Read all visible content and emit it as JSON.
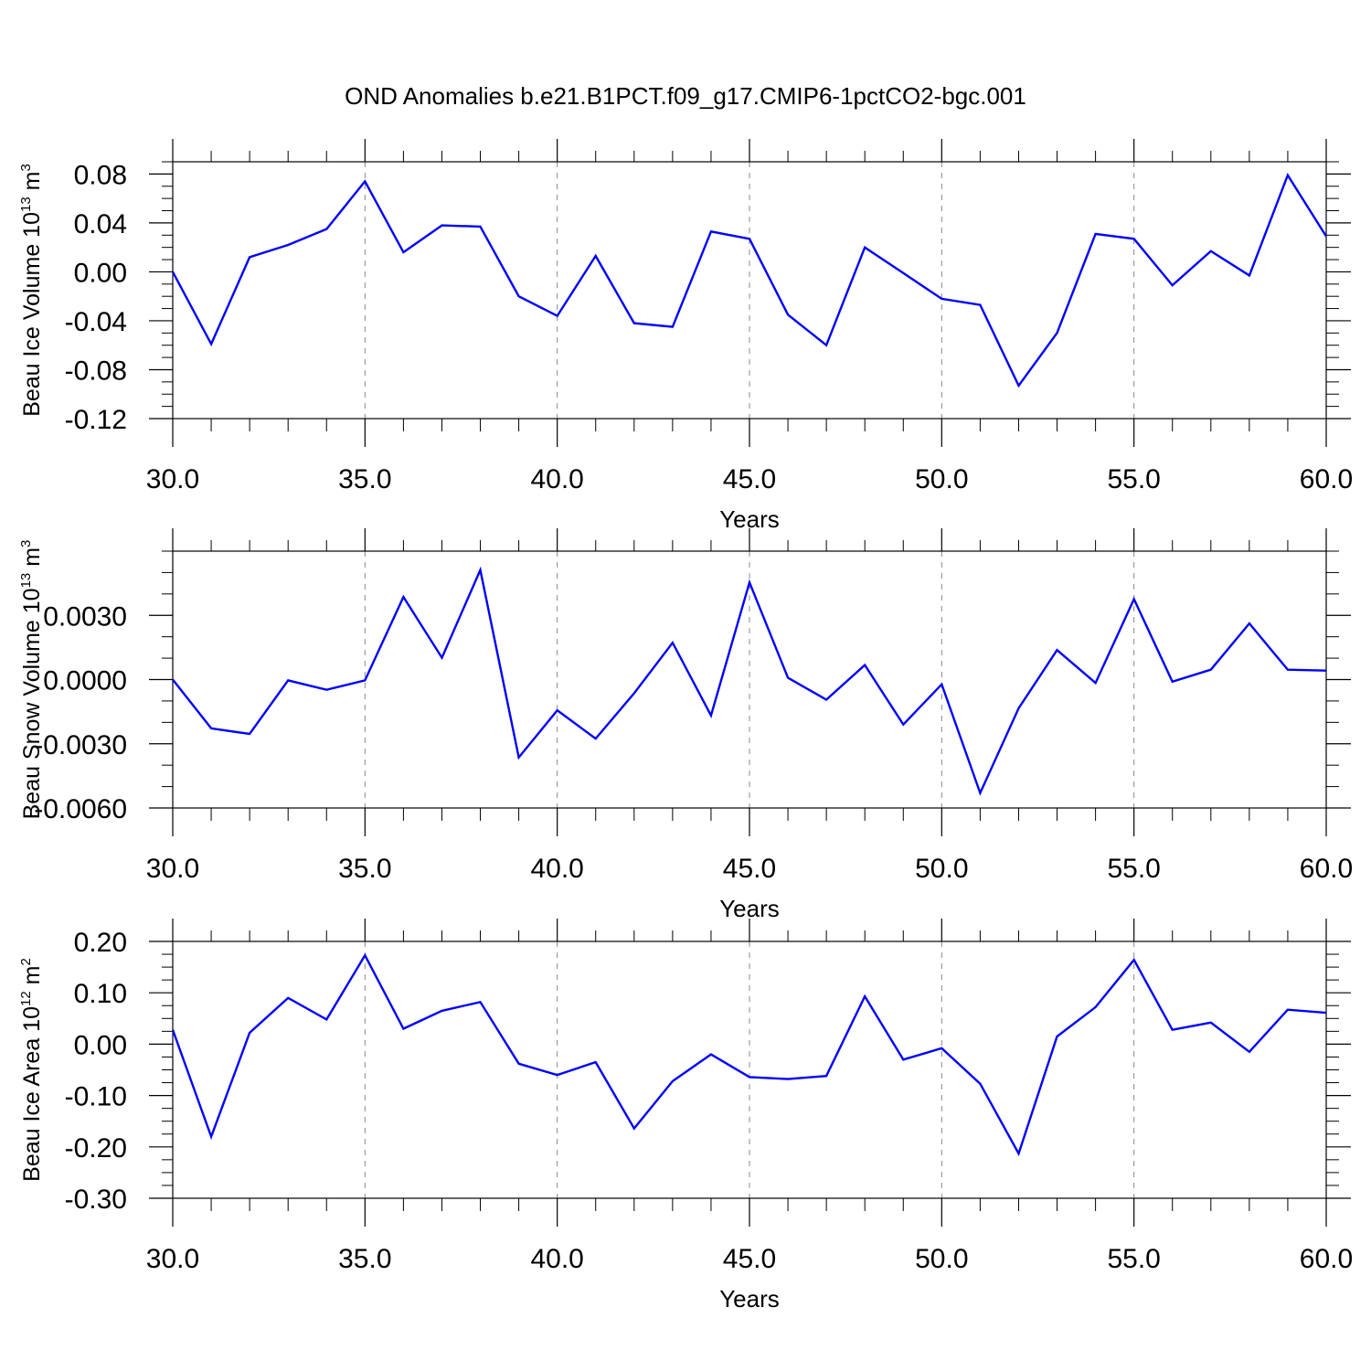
{
  "title": "OND Anomalies b.e21.B1PCT.f09_g17.CMIP6-1pctCO2-bgc.001",
  "colors": {
    "series": "#0000ff",
    "axis": "#000000",
    "grid": "#888888"
  },
  "chart_data": [
    {
      "type": "line",
      "xlabel": "Years",
      "ylabel_main": "Beau Ice Volume 10",
      "ylabel_exp": "13",
      "ylabel_unit": " m",
      "ylabel_unit_exp": "3",
      "xlim": [
        30,
        60
      ],
      "ylim": [
        -0.12,
        0.09
      ],
      "x_ticks": [
        30,
        35,
        40,
        45,
        50,
        55,
        60
      ],
      "x_tick_labels": [
        "30.0",
        "35.0",
        "40.0",
        "45.0",
        "50.0",
        "55.0",
        "60.0"
      ],
      "y_ticks": [
        -0.12,
        -0.08,
        -0.04,
        0.0,
        0.04,
        0.08
      ],
      "y_tick_labels": [
        "-0.12",
        "-0.08",
        "-0.04",
        "0.00",
        "0.04",
        "0.08"
      ],
      "y_minor_step": 0.01,
      "x_grid": "dashed-major",
      "x": [
        30,
        31,
        32,
        33,
        34,
        35,
        36,
        37,
        38,
        39,
        40,
        41,
        42,
        43,
        44,
        45,
        46,
        47,
        48,
        49,
        50,
        51,
        52,
        53,
        54,
        55,
        56,
        57,
        58,
        59,
        60
      ],
      "y": [
        0.0,
        -0.059,
        0.012,
        0.022,
        0.035,
        0.074,
        0.016,
        0.038,
        0.037,
        -0.02,
        -0.036,
        0.013,
        -0.042,
        -0.045,
        0.033,
        0.027,
        -0.035,
        -0.06,
        0.02,
        -0.001,
        -0.022,
        -0.027,
        -0.093,
        -0.05,
        0.031,
        0.027,
        -0.011,
        0.017,
        -0.003,
        0.079,
        0.029
      ]
    },
    {
      "type": "line",
      "xlabel": "Years",
      "ylabel_main": "Beau Snow Volume 10",
      "ylabel_exp": "13",
      "ylabel_unit": " m",
      "ylabel_unit_exp": "3",
      "xlim": [
        30,
        60
      ],
      "ylim": [
        -0.006,
        0.006
      ],
      "x_ticks": [
        30,
        35,
        40,
        45,
        50,
        55,
        60
      ],
      "x_tick_labels": [
        "30.0",
        "35.0",
        "40.0",
        "45.0",
        "50.0",
        "55.0",
        "60.0"
      ],
      "y_ticks": [
        -0.006,
        -0.003,
        0.0,
        0.003
      ],
      "y_tick_labels": [
        "-0.0060",
        "-0.0030",
        "0.0000",
        "0.0030"
      ],
      "y_minor_step": 0.001,
      "x_grid": "dashed-major",
      "x": [
        30,
        31,
        32,
        33,
        34,
        35,
        36,
        37,
        38,
        39,
        40,
        41,
        42,
        43,
        44,
        45,
        46,
        47,
        48,
        49,
        50,
        51,
        52,
        53,
        54,
        55,
        56,
        57,
        58,
        59,
        60
      ],
      "y": [
        0.0,
        -0.00228,
        -0.00254,
        -4e-05,
        -0.00048,
        -4e-05,
        0.00386,
        0.00102,
        0.00512,
        -0.00364,
        -0.00144,
        -0.00276,
        -0.00064,
        0.00172,
        -0.00168,
        0.00454,
        8e-05,
        -0.00094,
        0.00068,
        -0.0021,
        -0.00022,
        -0.0053,
        -0.00134,
        0.00138,
        -0.00016,
        0.00376,
        -0.0001,
        0.00046,
        0.00262,
        0.00046,
        0.00042
      ]
    },
    {
      "type": "line",
      "xlabel": "Years",
      "ylabel_main": "Beau Ice Area 10",
      "ylabel_exp": "12",
      "ylabel_unit": " m",
      "ylabel_unit_exp": "2",
      "xlim": [
        30,
        60
      ],
      "ylim": [
        -0.3,
        0.2
      ],
      "x_ticks": [
        30,
        35,
        40,
        45,
        50,
        55,
        60
      ],
      "x_tick_labels": [
        "30.0",
        "35.0",
        "40.0",
        "45.0",
        "50.0",
        "55.0",
        "60.0"
      ],
      "y_ticks": [
        -0.3,
        -0.2,
        -0.1,
        0.0,
        0.1,
        0.2
      ],
      "y_tick_labels": [
        "-0.30",
        "-0.20",
        "-0.10",
        "0.00",
        "0.10",
        "0.20"
      ],
      "y_minor_step": 0.025,
      "x_grid": "dashed-major",
      "x": [
        30,
        31,
        32,
        33,
        34,
        35,
        36,
        37,
        38,
        39,
        40,
        41,
        42,
        43,
        44,
        45,
        46,
        47,
        48,
        49,
        50,
        51,
        52,
        53,
        54,
        55,
        56,
        57,
        58,
        59,
        60
      ],
      "y": [
        0.028,
        -0.18,
        0.022,
        0.09,
        0.048,
        0.173,
        0.03,
        0.065,
        0.082,
        -0.038,
        -0.06,
        -0.035,
        -0.164,
        -0.072,
        -0.02,
        -0.064,
        -0.068,
        -0.062,
        0.093,
        -0.03,
        -0.008,
        -0.077,
        -0.213,
        0.015,
        0.072,
        0.164,
        0.028,
        0.042,
        -0.015,
        0.067,
        0.061
      ]
    }
  ]
}
